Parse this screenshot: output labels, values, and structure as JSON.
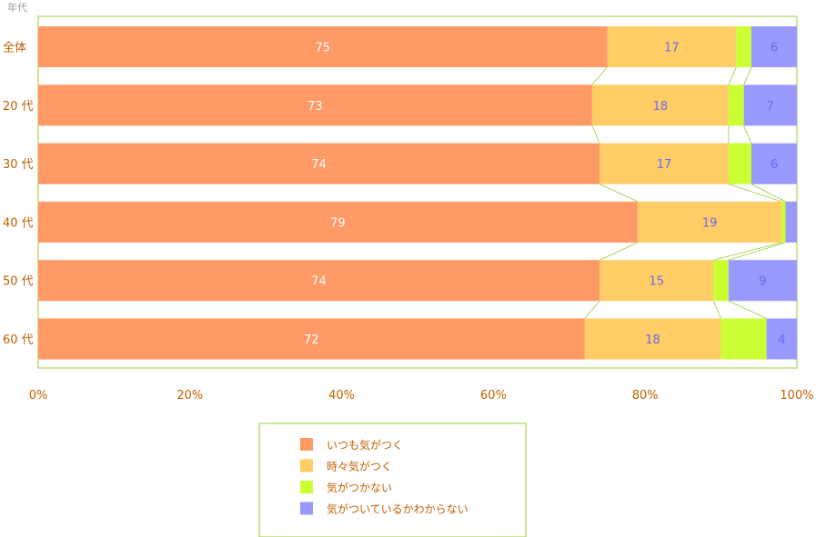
{
  "chart_data": {
    "type": "bar",
    "orientation": "horizontal",
    "stacked": true,
    "percent": true,
    "y_header": "年代",
    "categories": [
      "全体",
      "20 代",
      "30 代",
      "40 代",
      "50 代",
      "60 代"
    ],
    "series": [
      {
        "name": "いつも気がつく",
        "color": "#ff9966",
        "values": [
          75,
          73,
          74,
          79,
          74,
          72
        ],
        "labels": [
          "75",
          "73",
          "74",
          "79",
          "74",
          "72"
        ]
      },
      {
        "name": "時々気がつく",
        "color": "#ffcc66",
        "values": [
          17,
          18,
          17,
          19,
          15,
          18
        ],
        "labels": [
          "17",
          "18",
          "17",
          "19",
          "15",
          "18"
        ]
      },
      {
        "name": "気がつかない",
        "color": "#ccff33",
        "values": [
          2,
          2,
          3,
          0.5,
          2,
          6
        ],
        "labels": [
          "",
          "",
          "",
          "",
          "",
          ""
        ]
      },
      {
        "name": "気がついているかわからない",
        "color": "#9999ff",
        "values": [
          6,
          7,
          6,
          1.5,
          9,
          4
        ],
        "labels": [
          "6",
          "7",
          "6",
          "",
          "9",
          "4"
        ]
      }
    ],
    "x_ticks": [
      "0%",
      "20%",
      "40%",
      "60%",
      "80%",
      "100%"
    ],
    "xlim": [
      0,
      100
    ],
    "legend_position": "bottom",
    "connector_lines": true
  }
}
